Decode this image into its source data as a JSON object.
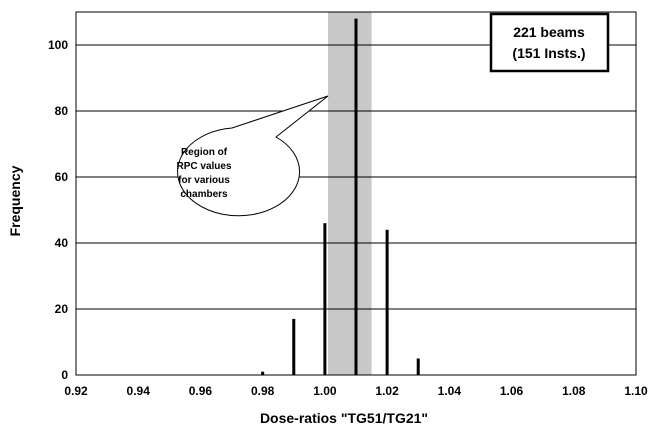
{
  "chart_data": {
    "type": "bar",
    "title": "",
    "xlabel": "Dose-ratios \"TG51/TG21\"",
    "ylabel": "Frequency",
    "xlim": [
      0.92,
      1.1
    ],
    "ylim": [
      0,
      110
    ],
    "x_ticks": [
      "0.92",
      "0.94",
      "0.96",
      "0.98",
      "1.00",
      "1.02",
      "1.04",
      "1.06",
      "1.08",
      "1.10"
    ],
    "y_ticks": [
      "0",
      "20",
      "40",
      "60",
      "80",
      "100"
    ],
    "grid": "horizontal",
    "x": [
      0.98,
      0.99,
      1.0,
      1.01,
      1.02,
      1.03
    ],
    "values": [
      1,
      17,
      46,
      108,
      44,
      5
    ],
    "shaded_region": {
      "x_start": 1.001,
      "x_end": 1.015
    },
    "annotations": {
      "box_lines": [
        "221 beams",
        "(151 Insts.)"
      ],
      "callout_lines": [
        "Region of",
        "RPC values",
        "for various",
        "chambers"
      ]
    }
  },
  "colors": {
    "bars": "#000000",
    "shaded_region": "#c8c8c8",
    "grid": "#000000",
    "background": "#ffffff"
  }
}
